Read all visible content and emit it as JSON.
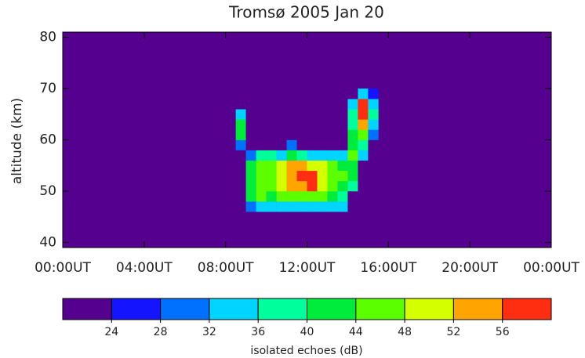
{
  "chart_data": {
    "type": "heatmap",
    "title": "Tromsø 2005 Jan 20",
    "y_label": "altitude (km)",
    "xlim": [
      0,
      24
    ],
    "xticks": [
      {
        "value": 0,
        "label": "00:00UT"
      },
      {
        "value": 4,
        "label": "04:00UT"
      },
      {
        "value": 8,
        "label": "08:00UT"
      },
      {
        "value": 12,
        "label": "12:00UT"
      },
      {
        "value": 16,
        "label": "16:00UT"
      },
      {
        "value": 20,
        "label": "20:00UT"
      },
      {
        "value": 24,
        "label": "00:00UT"
      }
    ],
    "ylim": [
      39,
      81
    ],
    "yticks": [
      40,
      50,
      60,
      70,
      80
    ],
    "background_value": 20,
    "x": [
      8,
      8.5,
      9,
      9.5,
      10,
      10.5,
      11,
      11.5,
      12,
      12.5,
      13,
      13.5,
      14,
      14.5,
      15,
      15.5
    ],
    "y": [
      46,
      48,
      50,
      52,
      54,
      56,
      58,
      60,
      62,
      64,
      66,
      68,
      70
    ],
    "z": [
      [
        20,
        20,
        30,
        34,
        33,
        34,
        34,
        34,
        34,
        34,
        33,
        32,
        20,
        20,
        20
      ],
      [
        20,
        20,
        40,
        44,
        40,
        44,
        46,
        46,
        46,
        45,
        42,
        36,
        20,
        20,
        20
      ],
      [
        20,
        20,
        42,
        46,
        44,
        48,
        52,
        54,
        56,
        50,
        46,
        42,
        36,
        20,
        20
      ],
      [
        20,
        20,
        42,
        46,
        44,
        50,
        54,
        56,
        58,
        50,
        46,
        44,
        40,
        20,
        20
      ],
      [
        20,
        20,
        40,
        44,
        44,
        48,
        52,
        54,
        50,
        48,
        44,
        42,
        42,
        20,
        20
      ],
      [
        20,
        20,
        30,
        36,
        36,
        34,
        40,
        38,
        34,
        34,
        32,
        34,
        44,
        34,
        20
      ],
      [
        20,
        30,
        20,
        20,
        20,
        20,
        30,
        20,
        20,
        20,
        20,
        20,
        42,
        38,
        20
      ],
      [
        20,
        42,
        20,
        20,
        20,
        20,
        20,
        20,
        20,
        20,
        20,
        20,
        40,
        44,
        30
      ],
      [
        20,
        40,
        20,
        20,
        20,
        20,
        20,
        20,
        20,
        20,
        20,
        20,
        38,
        54,
        34
      ],
      [
        20,
        34,
        20,
        20,
        20,
        20,
        20,
        20,
        20,
        20,
        20,
        20,
        36,
        58,
        36
      ],
      [
        20,
        20,
        20,
        20,
        20,
        20,
        20,
        20,
        20,
        20,
        20,
        20,
        32,
        56,
        34
      ],
      [
        20,
        20,
        20,
        20,
        20,
        20,
        20,
        20,
        20,
        20,
        20,
        20,
        20,
        34,
        24
      ]
    ],
    "colorbar": {
      "label": "isolated echoes (dB)",
      "zlim": [
        20,
        60
      ],
      "ticks": [
        24,
        28,
        32,
        36,
        40,
        44,
        48,
        52,
        56
      ],
      "colors": [
        "#56008f",
        "#1414ff",
        "#0070ff",
        "#00d4ff",
        "#00ff9c",
        "#00ec3c",
        "#5cff00",
        "#d4ff00",
        "#ffa400",
        "#ff2e10"
      ]
    }
  }
}
